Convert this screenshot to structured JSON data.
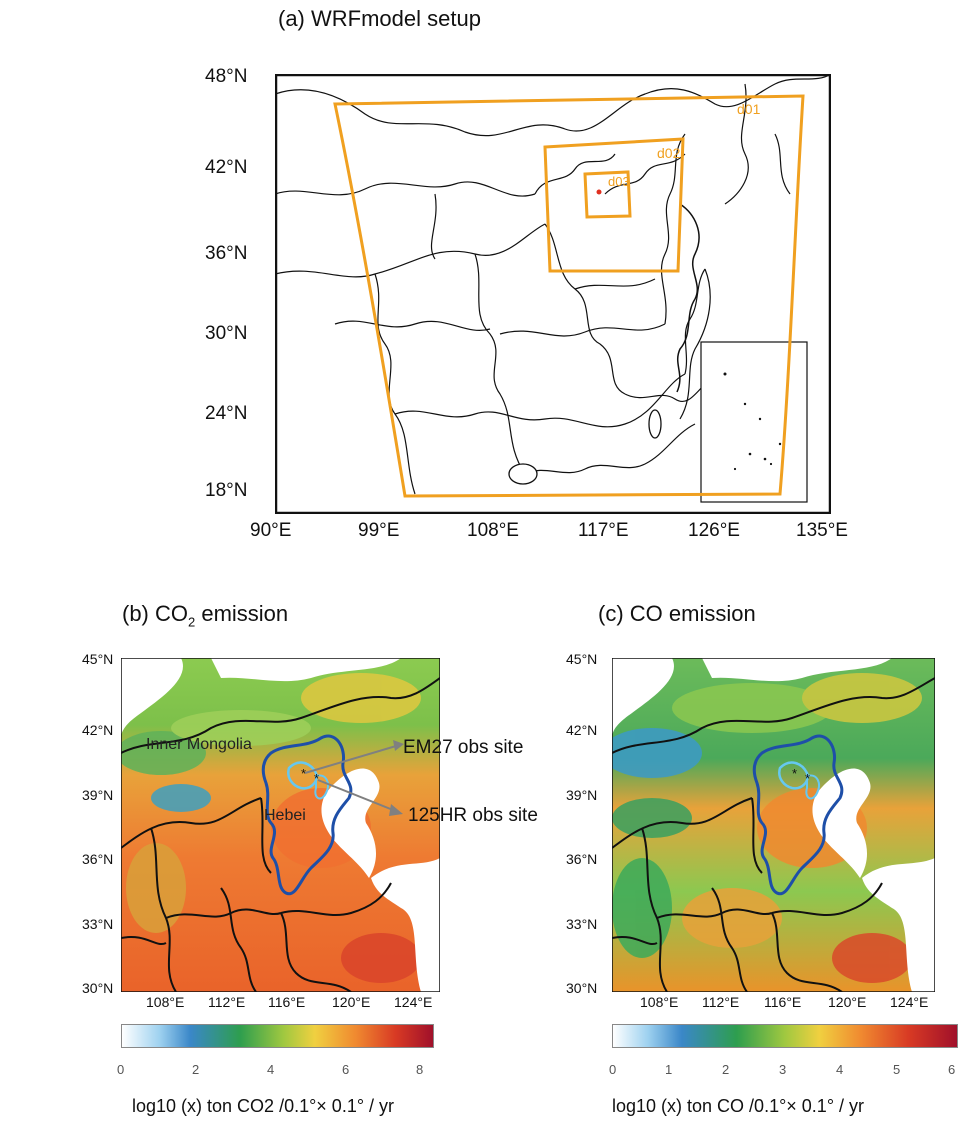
{
  "panel_a": {
    "title": "(a) WRFmodel setup",
    "lat_ticks": [
      "48°N",
      "42°N",
      "36°N",
      "30°N",
      "24°N",
      "18°N"
    ],
    "lon_ticks": [
      "90°E",
      "99°E",
      "108°E",
      "117°E",
      "126°E",
      "135°E"
    ],
    "domains": [
      "d01",
      "d02",
      "d03"
    ],
    "domain_color": "#F0A020"
  },
  "panel_b": {
    "title_prefix": "(b) CO",
    "title_sub": "2",
    "title_suffix": " emission",
    "lat_ticks": [
      "45°N",
      "42°N",
      "39°N",
      "36°N",
      "33°N",
      "30°N"
    ],
    "lon_ticks": [
      "108°E",
      "112°E",
      "116°E",
      "120°E",
      "124°E"
    ],
    "region_labels": [
      "Inner Mongolia",
      "Hebei"
    ],
    "annotations": [
      "EM27 obs site",
      "125HR obs site"
    ],
    "colorbar_ticks": [
      "0",
      "2",
      "4",
      "6",
      "8"
    ],
    "colorbar_label": "log10 (x) ton CO2 /0.1°× 0.1° / yr"
  },
  "panel_c": {
    "title": "(c) CO emission",
    "lat_ticks": [
      "45°N",
      "42°N",
      "39°N",
      "36°N",
      "33°N",
      "30°N"
    ],
    "lon_ticks": [
      "108°E",
      "112°E",
      "116°E",
      "120°E",
      "124°E"
    ],
    "colorbar_ticks": [
      "0",
      "1",
      "2",
      "3",
      "4",
      "5",
      "6"
    ],
    "colorbar_label": "log10 (x) ton CO /0.1°× 0.1° / yr"
  },
  "colors": {
    "boundary": "#111111",
    "beijing_outline": "#66C8F0",
    "hebei_outline": "#1E4FA8",
    "arrow": "#808080"
  }
}
